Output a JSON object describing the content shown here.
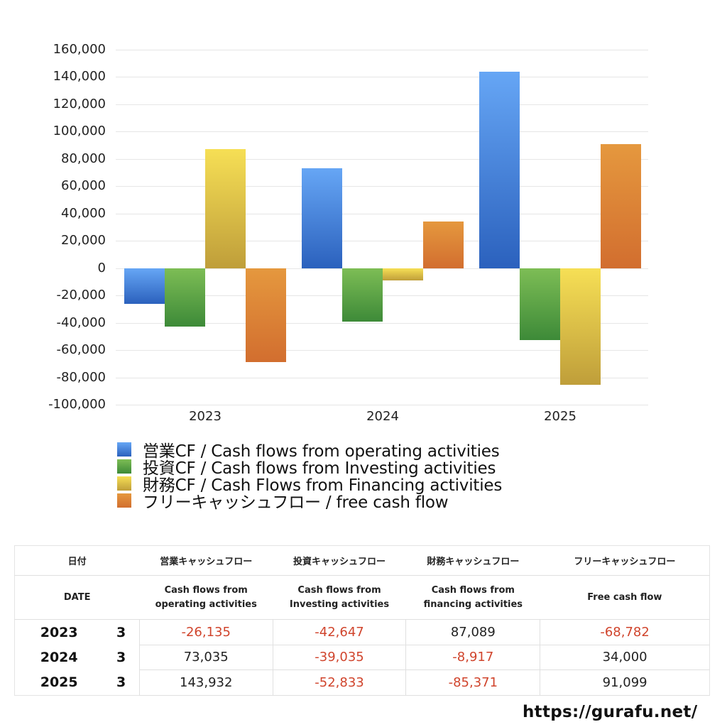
{
  "chart_data": {
    "type": "bar",
    "title": "",
    "xlabel": "",
    "ylabel": "",
    "categories": [
      "2023",
      "2024",
      "2025"
    ],
    "ylim": [
      -100000,
      160000
    ],
    "yticks": [
      "160,000",
      "140,000",
      "120,000",
      "100,000",
      "80,000",
      "60,000",
      "40,000",
      "20,000",
      "0",
      "-20,000",
      "-40,000",
      "-60,000",
      "-80,000",
      "-100,000"
    ],
    "grid": true,
    "legend_position": "bottom",
    "series": [
      {
        "name": "営業CF / Cash flows from operating activities",
        "color": "#3a78d8",
        "values": [
          -26135,
          73035,
          143932
        ]
      },
      {
        "name": "投資CF / Cash flows from Investing activities",
        "color": "#4e9a3e",
        "values": [
          -42647,
          -39035,
          -52833
        ]
      },
      {
        "name": "財務CF / Cash Flows from Financing activities",
        "color": "#d9be42",
        "values": [
          87089,
          -8917,
          -85371
        ]
      },
      {
        "name": "フリーキャッシュフロー / free cash flow",
        "color": "#dc7e34",
        "values": [
          -68782,
          34000,
          91099
        ]
      }
    ]
  },
  "legend": {
    "items": [
      {
        "label": "営業CF / Cash flows from operating activities"
      },
      {
        "label": "投資CF / Cash flows from Investing activities"
      },
      {
        "label": "財務CF / Cash Flows from Financing activities"
      },
      {
        "label": "フリーキャッシュフロー / free cash flow"
      }
    ]
  },
  "table": {
    "header_jp": {
      "date": "日付",
      "operating": "営業キャッシュフロー",
      "investing": "投資キャッシュフロー",
      "financing": "財務キャッシュフロー",
      "free": "フリーキャッシュフロー"
    },
    "header_en": {
      "date": "DATE",
      "operating_1": "Cash flows from",
      "operating_2": "operating activities",
      "investing_1": "Cash flows from",
      "investing_2": "Investing activities",
      "financing_1": "Cash flows from",
      "financing_2": "financing activities",
      "free": "Free cash flow"
    },
    "rows": [
      {
        "year": "2023",
        "month": "3",
        "operating": "-26,135",
        "investing": "-42,647",
        "financing": "87,089",
        "free": "-68,782"
      },
      {
        "year": "2024",
        "month": "3",
        "operating": "73,035",
        "investing": "-39,035",
        "financing": "-8,917",
        "free": "34,000"
      },
      {
        "year": "2025",
        "month": "3",
        "operating": "143,932",
        "investing": "-52,833",
        "financing": "-85,371",
        "free": "91,099"
      }
    ]
  },
  "footer": {
    "url": "https://gurafu.net/"
  },
  "colors": {
    "negative_text": "#d0442c",
    "operating_top": "#66a6f5",
    "operating_bottom": "#2b61bd",
    "investing_top": "#7dbd55",
    "investing_bottom": "#3d8a38",
    "financing_top": "#f6df55",
    "financing_bottom": "#bf9e3a",
    "free_top": "#e5983e",
    "free_bottom": "#d26e2f"
  }
}
